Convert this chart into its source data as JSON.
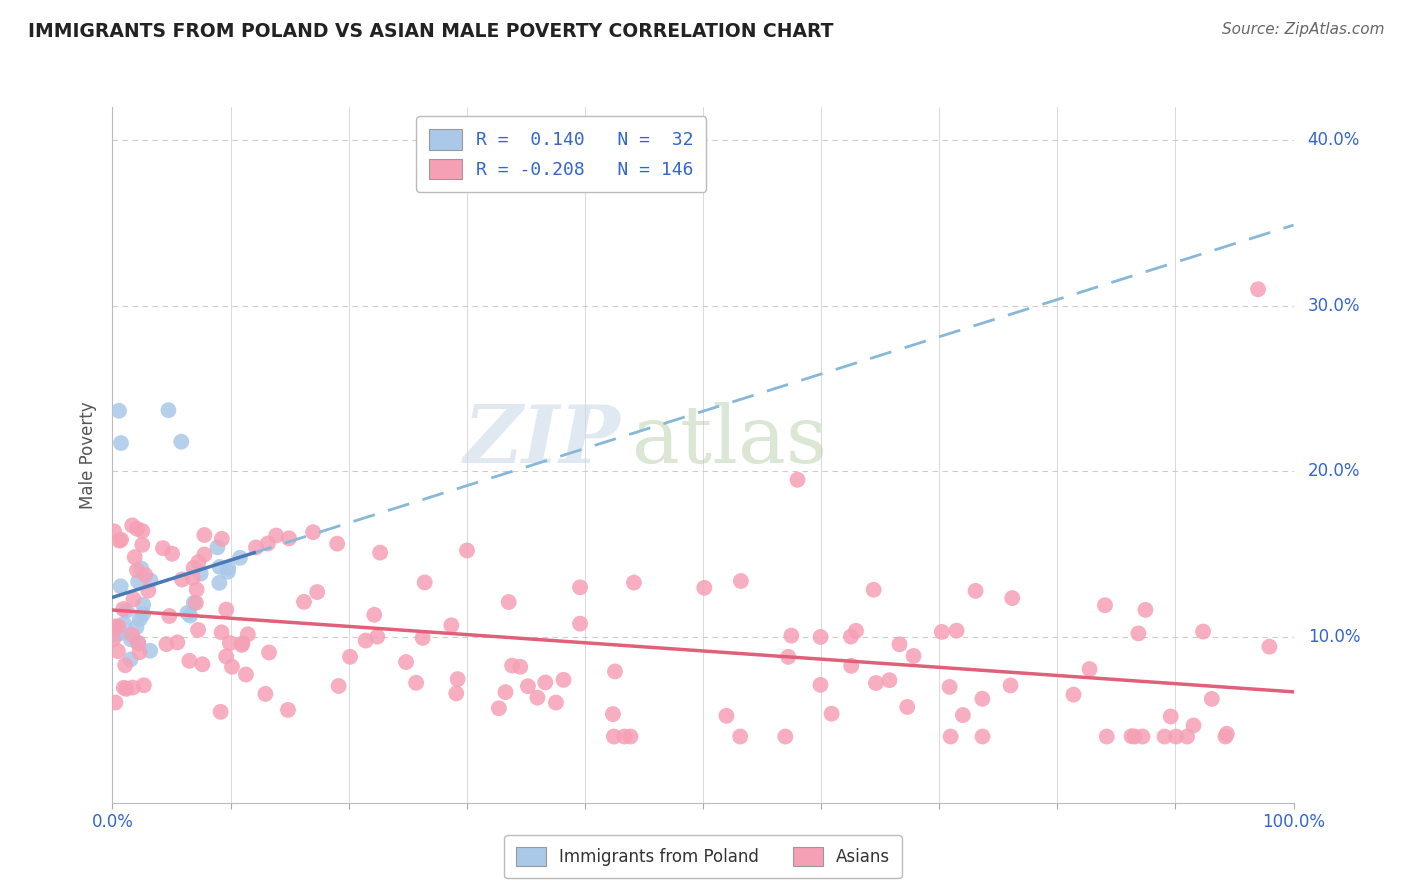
{
  "title": "IMMIGRANTS FROM POLAND VS ASIAN MALE POVERTY CORRELATION CHART",
  "source": "Source: ZipAtlas.com",
  "ylabel": "Male Poverty",
  "background_color": "#ffffff",
  "grid_color": "#cccccc",
  "watermark_zip": "ZIP",
  "watermark_atlas": "atlas",
  "legend_r1": "R =  0.140",
  "legend_n1": "N =  32",
  "legend_r2": "R = -0.208",
  "legend_n2": "N = 146",
  "color_blue": "#aac8e8",
  "color_pink": "#f5a0b5",
  "trendline_blue_solid_color": "#4a7ab5",
  "trendline_pink_color": "#e0607a",
  "trendline_blue_dash_color": "#88b8d8",
  "tick_label_color": "#3366cc",
  "title_color": "#222222",
  "source_color": "#666666",
  "ylabel_color": "#555555"
}
